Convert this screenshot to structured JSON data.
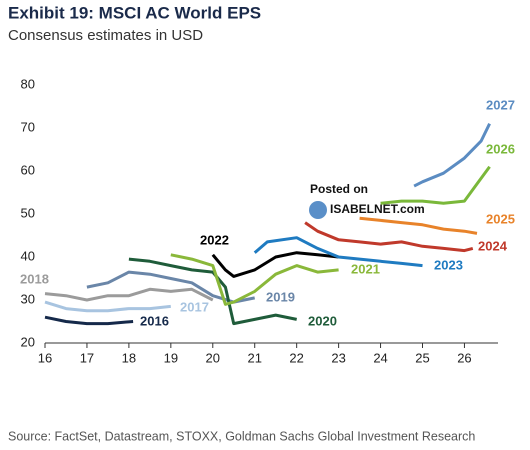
{
  "chart_data": {
    "type": "line",
    "title": "Exhibit 19: MSCI AC World EPS",
    "subtitle": "Consensus estimates in USD",
    "source": "Source: FactSet, Datastream, STOXX, Goldman Sachs Global Investment Research",
    "watermark": [
      "Posted on",
      "ISABELNET.com"
    ],
    "xlim": [
      16,
      26.8
    ],
    "ylim": [
      20,
      80
    ],
    "xticks": [
      16,
      17,
      18,
      19,
      20,
      21,
      22,
      23,
      24,
      25,
      26
    ],
    "yticks": [
      20,
      30,
      40,
      50,
      60,
      70,
      80
    ],
    "grid": false,
    "series": [
      {
        "name": "2016",
        "color": "#15294a",
        "x": [
          16,
          16.5,
          17,
          17.5,
          18.1
        ],
        "values": [
          26,
          25,
          24.5,
          24.5,
          25
        ]
      },
      {
        "name": "2017",
        "color": "#a8c4e0",
        "x": [
          16,
          16.5,
          17,
          17.5,
          18,
          18.5,
          19
        ],
        "values": [
          29.5,
          28,
          27.5,
          27.5,
          28,
          28,
          28.5
        ]
      },
      {
        "name": "2018",
        "color": "#9b9b9b",
        "x": [
          16,
          16.5,
          17,
          17.5,
          18,
          18.5,
          19,
          19.5,
          20
        ],
        "values": [
          31.5,
          31,
          30,
          31,
          31,
          32.5,
          32,
          32.5,
          30
        ]
      },
      {
        "name": "2019",
        "color": "#6a86a8",
        "x": [
          17,
          17.5,
          18,
          18.5,
          19,
          19.5,
          20,
          20.5,
          21
        ],
        "values": [
          33,
          34,
          36.5,
          36,
          35,
          34,
          31,
          29.5,
          30.5
        ]
      },
      {
        "name": "2020",
        "color": "#1f5c3a",
        "x": [
          18,
          18.5,
          19,
          19.5,
          20,
          20.3,
          20.5,
          21,
          21.5,
          22
        ],
        "values": [
          39.5,
          39,
          38,
          37,
          36.5,
          33,
          24.5,
          25.5,
          26.5,
          25.5
        ]
      },
      {
        "name": "2021",
        "color": "#8ab83a",
        "x": [
          19,
          19.5,
          20,
          20.3,
          20.5,
          21,
          21.5,
          22,
          22.5,
          23
        ],
        "values": [
          40.5,
          39.5,
          38,
          29,
          29.5,
          32,
          36,
          38,
          36.5,
          37
        ]
      },
      {
        "name": "2022",
        "color": "#000000",
        "x": [
          20,
          20.3,
          20.5,
          21,
          21.5,
          22,
          22.5,
          23
        ],
        "values": [
          40.5,
          37,
          35.5,
          37,
          40,
          41,
          40.5,
          40
        ]
      },
      {
        "name": "2023",
        "color": "#1f7bc1",
        "x": [
          21,
          21.3,
          22,
          22.5,
          23,
          23.5,
          24,
          24.5,
          25
        ],
        "values": [
          41,
          43.5,
          44.5,
          42,
          40,
          39.5,
          39,
          38.5,
          38
        ]
      },
      {
        "name": "2024",
        "color": "#c0392b",
        "x": [
          22.2,
          22.5,
          23,
          23.5,
          24,
          24.5,
          25,
          25.5,
          26,
          26.2
        ],
        "values": [
          48,
          46,
          44,
          43.5,
          43,
          43.5,
          42.5,
          42,
          41.5,
          42
        ]
      },
      {
        "name": "2025",
        "color": "#e8832a",
        "x": [
          23.5,
          24,
          24.5,
          25,
          25.5,
          26,
          26.3
        ],
        "values": [
          49,
          48.5,
          48,
          47.5,
          46.5,
          46,
          45.5
        ]
      },
      {
        "name": "2026",
        "color": "#7ab83a",
        "x": [
          24,
          24.5,
          25,
          25.5,
          26,
          26.3,
          26.6
        ],
        "values": [
          52.5,
          53,
          53,
          52.5,
          53,
          57,
          61
        ]
      },
      {
        "name": "2027",
        "color": "#5b8cc2",
        "x": [
          24.8,
          25,
          25.5,
          26,
          26.4,
          26.6
        ],
        "values": [
          56.5,
          57.5,
          59.5,
          63,
          67,
          71
        ]
      }
    ]
  }
}
